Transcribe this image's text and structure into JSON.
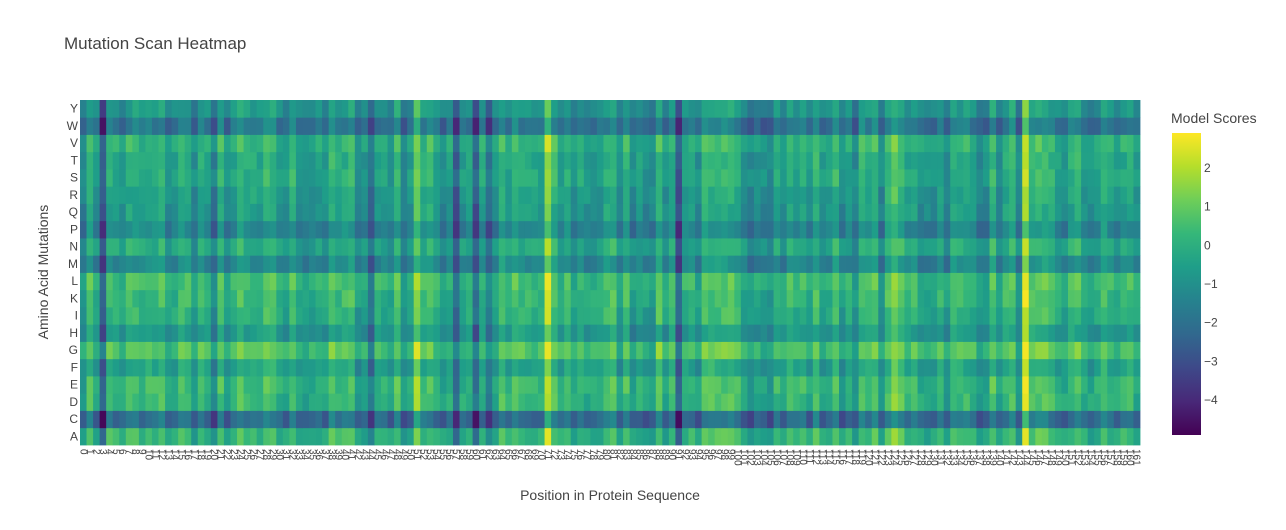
{
  "chart_data": {
    "type": "heatmap",
    "title": "Mutation Scan Heatmap",
    "xlabel": "Position in Protein Sequence",
    "ylabel": "Amino Acid Mutations",
    "colorbar_title": "Model Scores",
    "colorscale": "Viridis",
    "zmin": -4.9,
    "zmax": 2.9,
    "colorbar_ticks": [
      2,
      1,
      0,
      -1,
      -2,
      -3,
      -4
    ],
    "x_range": [
      0,
      161
    ],
    "y_categories_bottom_to_top": [
      "A",
      "C",
      "D",
      "E",
      "F",
      "G",
      "H",
      "I",
      "K",
      "L",
      "M",
      "N",
      "P",
      "Q",
      "R",
      "S",
      "T",
      "V",
      "W",
      "Y"
    ],
    "row_means": {
      "A": 0.1,
      "C": -2.2,
      "D": 0.1,
      "E": 0.2,
      "F": -0.5,
      "G": 0.6,
      "H": -0.8,
      "I": -0.1,
      "K": 0.1,
      "L": 0.3,
      "M": -1.3,
      "N": -0.3,
      "P": -1.4,
      "Q": -0.8,
      "R": -0.6,
      "S": -0.3,
      "T": -0.4,
      "V": 0.0,
      "W": -1.9,
      "Y": -0.9
    },
    "notable_columns": {
      "high_scoring_positions": [
        51,
        71,
        124,
        144
      ],
      "low_scoring_positions": [
        3,
        20,
        44,
        57,
        60,
        62,
        91
      ]
    },
    "legend_position": "right"
  }
}
